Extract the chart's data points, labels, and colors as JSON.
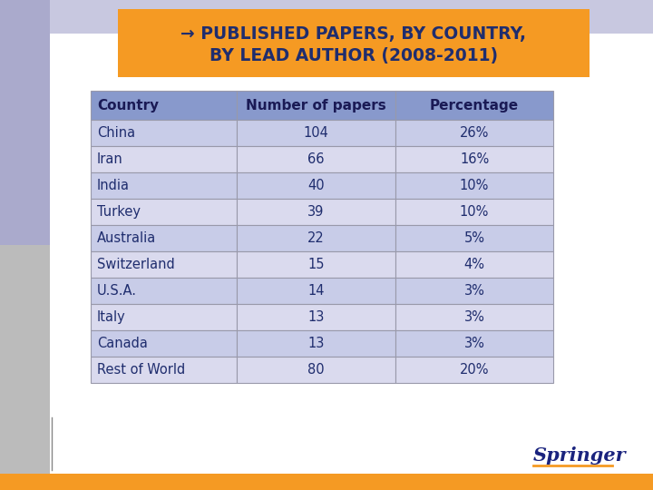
{
  "title_line1": "→ PUBLISHED PAPERS, BY COUNTRY,",
  "title_line2": "BY LEAD AUTHOR (2008-2011)",
  "title_bg_color": "#F59A23",
  "title_text_color": "#1F2D6E",
  "header": [
    "Country",
    "Number of papers",
    "Percentage"
  ],
  "rows": [
    [
      "China",
      "104",
      "26%"
    ],
    [
      "Iran",
      "66",
      "16%"
    ],
    [
      "India",
      "40",
      "10%"
    ],
    [
      "Turkey",
      "39",
      "10%"
    ],
    [
      "Australia",
      "22",
      "5%"
    ],
    [
      "Switzerland",
      "15",
      "4%"
    ],
    [
      "U.S.A.",
      "14",
      "3%"
    ],
    [
      "Italy",
      "13",
      "3%"
    ],
    [
      "Canada",
      "13",
      "3%"
    ],
    [
      "Rest of World",
      "80",
      "20%"
    ]
  ],
  "bg_top_color": "#C8C8E0",
  "bg_bottom_color": "#D8D8D8",
  "left_stripe_top": "#AAAACC",
  "left_stripe_bottom": "#AAAAAA",
  "table_header_bg": "#8899CC",
  "row_bg_light": "#C8CCE8",
  "row_bg_mid": "#DADAEE",
  "table_text_color": "#1F2D6E",
  "header_text_color": "#1A1A55",
  "border_color": "#9999AA",
  "springer_color": "#1A237E",
  "springer_orange_line": "#F59A23",
  "bottom_bar_color": "#F59A23"
}
